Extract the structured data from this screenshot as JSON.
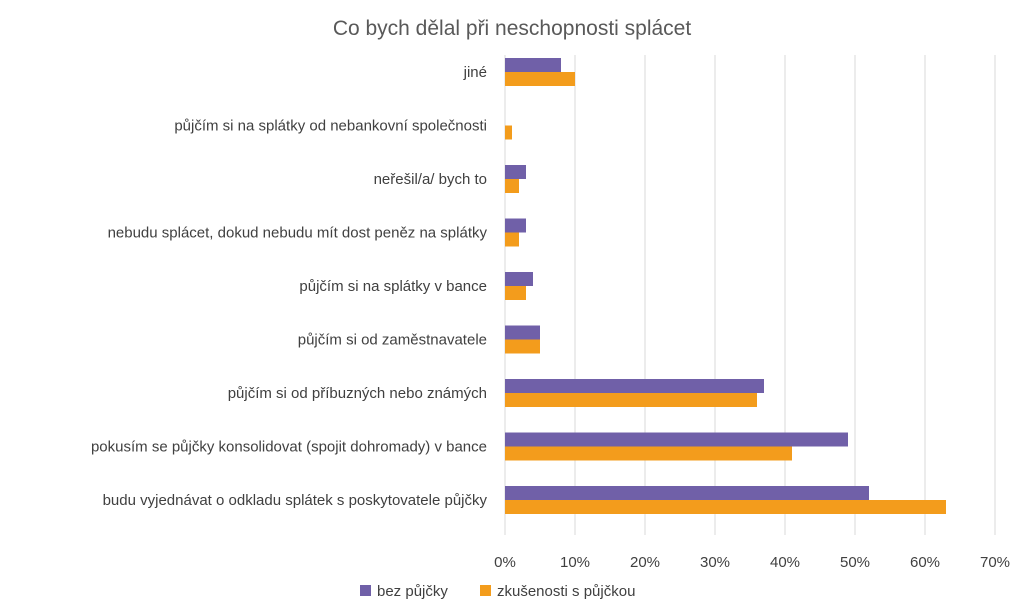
{
  "chart_data": {
    "type": "bar",
    "orientation": "horizontal",
    "title": "Co bych dělal při neschopnosti splácet",
    "categories": [
      "jiné",
      "půjčím si na splátky od nebankovní společnosti",
      "neřešil/a/ bych to",
      "nebudu splácet, dokud nebudu mít dost peněz na splátky",
      "půjčím si na splátky v bance",
      "půjčím si od zaměstnavatele",
      "půjčím si od příbuzných nebo známých",
      "pokusím se půjčky konsolidovat (spojit dohromady) v bance",
      "budu vyjednávat o odkladu splátek s poskytovatele půjčky"
    ],
    "series": [
      {
        "name": "bez půjčky",
        "color": "#7060A8",
        "values": [
          8,
          0,
          3,
          3,
          4,
          5,
          37,
          49,
          52
        ]
      },
      {
        "name": "zkušenosti s půjčkou",
        "color": "#F39C1C",
        "values": [
          10,
          1,
          2,
          2,
          3,
          5,
          36,
          41,
          63
        ]
      }
    ],
    "xlim": [
      0,
      70
    ],
    "xticks": [
      0,
      10,
      20,
      30,
      40,
      50,
      60,
      70
    ],
    "tick_suffix": "%",
    "grid": true,
    "legend_position": "bottom-left"
  }
}
